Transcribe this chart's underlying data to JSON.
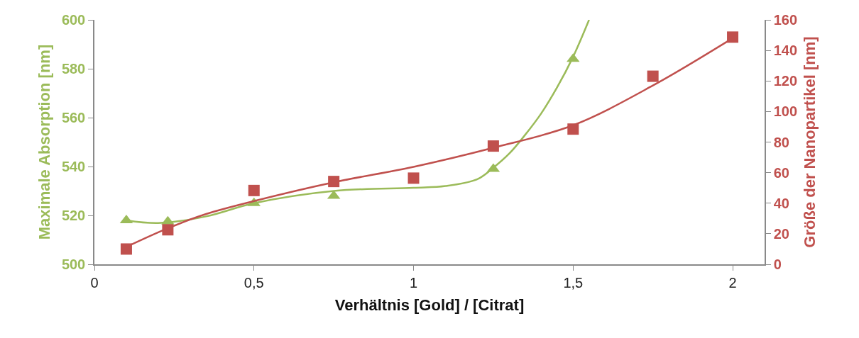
{
  "chart_data": {
    "type": "scatter",
    "xlabel": "Verhältnis [Gold] / [Citrat]",
    "ylabel": "Maximale Absorption [nm]",
    "y2label": "Größe der Nanopartikel [nm]",
    "xlim": [
      0,
      2.1
    ],
    "xticks": [
      0,
      {
        "value": 0.5,
        "label": "0,5"
      },
      1,
      {
        "value": 1.5,
        "label": "1,5"
      },
      2
    ],
    "ylim": [
      500,
      600
    ],
    "yticks": [
      500,
      520,
      540,
      560,
      580,
      600
    ],
    "y2lim": [
      0,
      160
    ],
    "y2ticks": [
      0,
      20,
      40,
      60,
      80,
      100,
      120,
      140,
      160
    ],
    "series": [
      {
        "type": "line",
        "marker": "none",
        "color": "#9bbb59",
        "x": [
          0.1,
          0.2,
          0.35,
          0.5,
          0.75,
          1.0,
          1.1,
          1.2,
          1.25,
          1.3,
          1.35,
          1.4,
          1.45,
          1.5,
          1.55
        ],
        "values": [
          518,
          516.9,
          519.6,
          525,
          530,
          531.3,
          532,
          534.8,
          539.5,
          545.3,
          553,
          561.7,
          572.4,
          584.9,
          600
        ]
      },
      {
        "type": "line",
        "marker": "none",
        "axis": "y2",
        "color": "#c0504d",
        "x": [
          0.1,
          0.23,
          0.35,
          0.5,
          0.75,
          1.0,
          1.25,
          1.5,
          1.75,
          2.0
        ],
        "values": [
          11.4,
          23.6,
          32.9,
          41.4,
          53.7,
          63.8,
          76.3,
          91,
          117,
          148
        ]
      },
      {
        "marker": "triangle",
        "color": "#9bbb59",
        "x": [
          0.1,
          0.23,
          0.5,
          0.75,
          1.25,
          1.5
        ],
        "values": [
          518,
          517.5,
          525,
          528,
          539,
          584
        ]
      },
      {
        "marker": "square",
        "axis": "y2",
        "color": "#c0504d",
        "x": [
          0.1,
          0.23,
          0.5,
          0.75,
          1.0,
          1.25,
          1.5,
          1.75,
          2.0
        ],
        "values": [
          10,
          22.6,
          48.3,
          54.2,
          56.4,
          77.4,
          88.5,
          123.1,
          148.7
        ]
      }
    ]
  }
}
